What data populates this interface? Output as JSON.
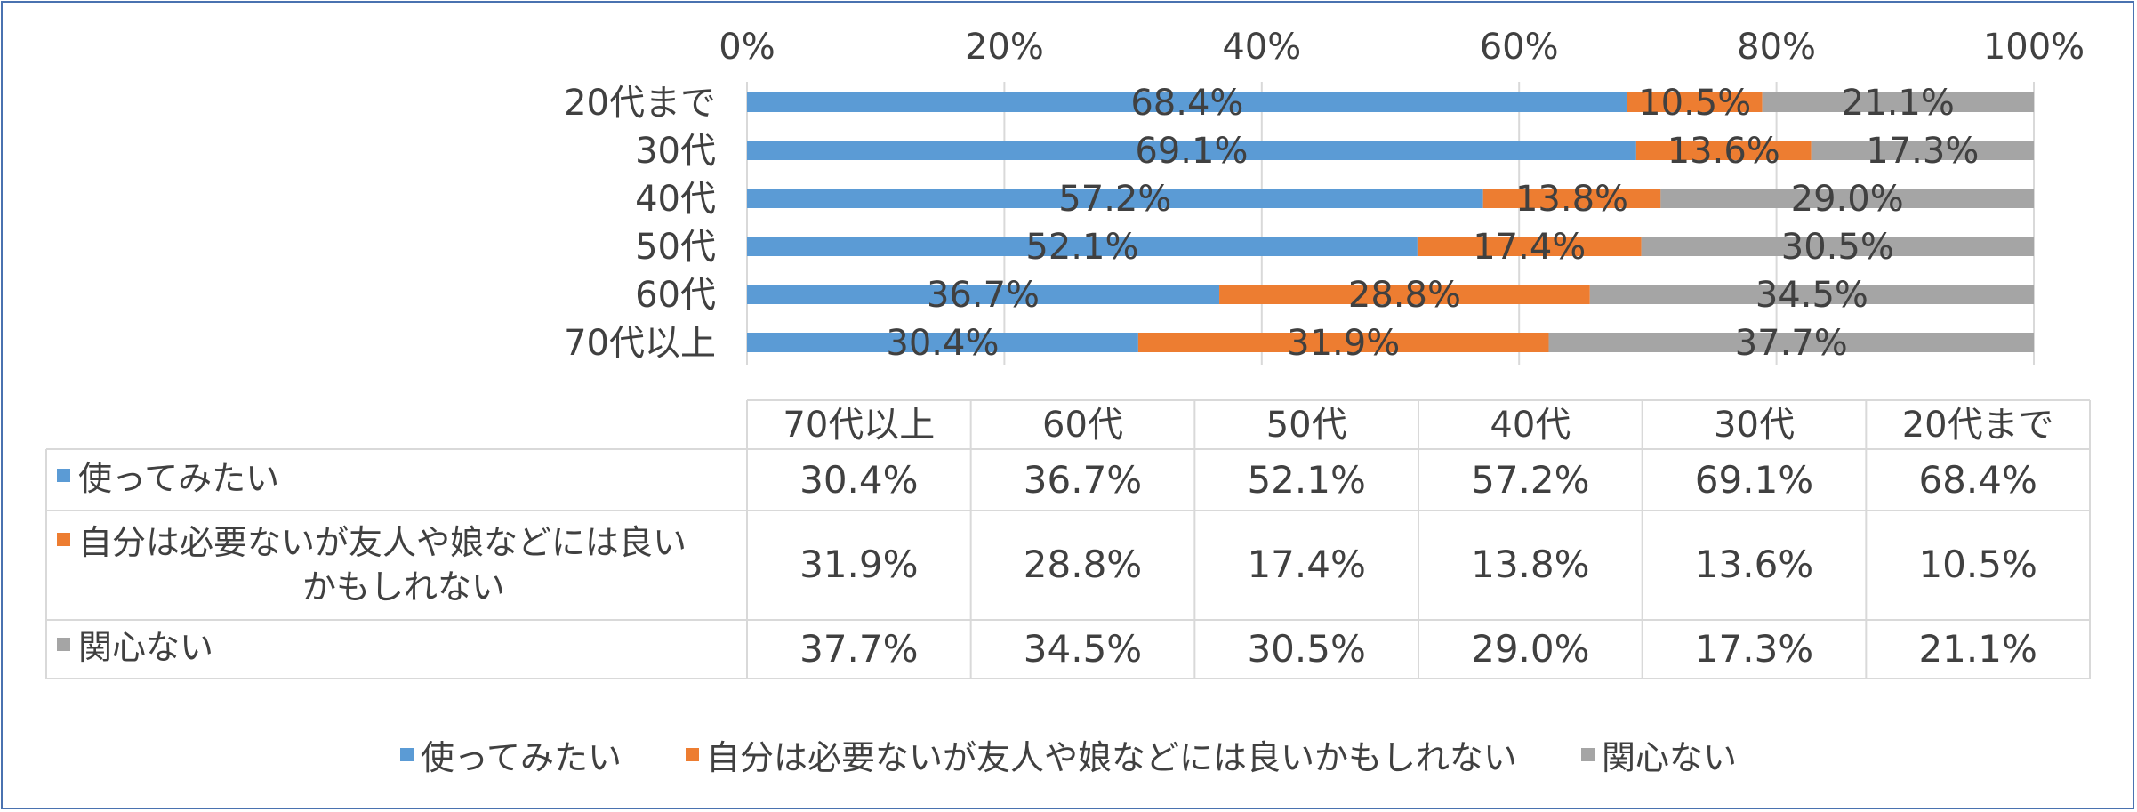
{
  "chart_data": {
    "type": "bar",
    "orientation": "horizontal",
    "stacked": "percent",
    "categories": [
      "20代まで",
      "30代",
      "40代",
      "50代",
      "60代",
      "70代以上"
    ],
    "series": [
      {
        "name": "使ってみたい",
        "color": "#5b9bd5",
        "values": [
          68.4,
          69.1,
          57.2,
          52.1,
          36.7,
          30.4
        ]
      },
      {
        "name": "自分は必要ないが友人や娘などには良いかもしれない",
        "color": "#ed7d31",
        "values": [
          10.5,
          13.6,
          13.8,
          17.4,
          28.8,
          31.9
        ]
      },
      {
        "name": "関心ない",
        "color": "#a5a5a5",
        "values": [
          21.1,
          17.3,
          29.0,
          30.5,
          34.5,
          37.7
        ]
      }
    ],
    "data_labels": [
      [
        "68.4%",
        "10.5%",
        "21.1%"
      ],
      [
        "69.1%",
        "13.6%",
        "17.3%"
      ],
      [
        "57.2%",
        "13.8%",
        "29.0%"
      ],
      [
        "52.1%",
        "17.4%",
        "30.5%"
      ],
      [
        "36.7%",
        "28.8%",
        "34.5%"
      ],
      [
        "30.4%",
        "31.9%",
        "37.7%"
      ]
    ],
    "x_ticks": [
      "0%",
      "20%",
      "40%",
      "60%",
      "80%",
      "100%"
    ],
    "xlim": [
      0,
      100
    ],
    "x_axis_position": "top",
    "grid": true,
    "legend_position": "bottom",
    "data_table": {
      "columns": [
        "70代以上",
        "60代",
        "50代",
        "40代",
        "30代",
        "20代まで"
      ],
      "rows": [
        {
          "label": "使ってみたい",
          "label_lines": [
            "使ってみたい"
          ],
          "color": "#5b9bd5",
          "values": [
            "30.4%",
            "36.7%",
            "52.1%",
            "57.2%",
            "69.1%",
            "68.4%"
          ]
        },
        {
          "label": "自分は必要ないが友人や娘などには良いかもしれない",
          "label_lines": [
            "自分は必要ないが友人や娘などには良い",
            "かもしれない"
          ],
          "color": "#ed7d31",
          "values": [
            "31.9%",
            "28.8%",
            "17.4%",
            "13.8%",
            "13.6%",
            "10.5%"
          ]
        },
        {
          "label": "関心ない",
          "label_lines": [
            "関心ない"
          ],
          "color": "#a5a5a5",
          "values": [
            "37.7%",
            "34.5%",
            "30.5%",
            "29.0%",
            "17.3%",
            "21.1%"
          ]
        }
      ]
    }
  }
}
